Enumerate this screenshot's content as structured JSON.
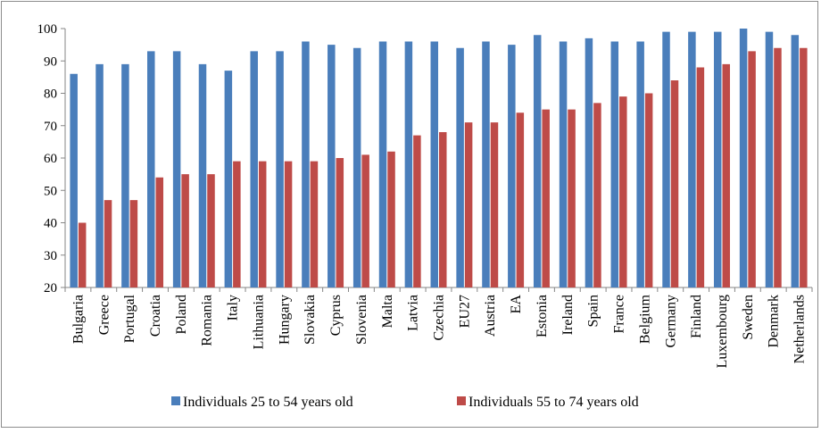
{
  "chart_data": {
    "type": "bar",
    "title": "",
    "xlabel": "",
    "ylabel": "",
    "ylim": [
      20,
      100
    ],
    "yticks": [
      20,
      30,
      40,
      50,
      60,
      70,
      80,
      90,
      100
    ],
    "grid": false,
    "legend_position": "bottom",
    "categories": [
      "Bulgaria",
      "Greece",
      "Portugal",
      "Croatia",
      "Poland",
      "Romania",
      "Italy",
      "Lithuania",
      "Hungary",
      "Slovakia",
      "Cyprus",
      "Slovenia",
      "Malta",
      "Latvia",
      "Czechia",
      "EU27",
      "Austria",
      "EA",
      "Estonia",
      "Ireland",
      "Spain",
      "France",
      "Belgium",
      "Germany",
      "Finland",
      "Luxembourg",
      "Sweden",
      "Denmark",
      "Netherlands"
    ],
    "series": [
      {
        "name": "Individuals 25 to 54 years old",
        "color": "#4a7ebb",
        "values": [
          86,
          89,
          89,
          93,
          93,
          89,
          87,
          93,
          93,
          96,
          95,
          94,
          96,
          96,
          96,
          94,
          96,
          95,
          98,
          96,
          97,
          96,
          96,
          99,
          99,
          99,
          100,
          99,
          98
        ]
      },
      {
        "name": "Individuals 55 to 74 years old",
        "color": "#be4b48",
        "values": [
          40,
          47,
          47,
          54,
          55,
          55,
          59,
          59,
          59,
          59,
          60,
          61,
          62,
          67,
          68,
          71,
          71,
          74,
          75,
          75,
          77,
          79,
          80,
          84,
          88,
          89,
          93,
          94,
          94
        ]
      }
    ]
  }
}
